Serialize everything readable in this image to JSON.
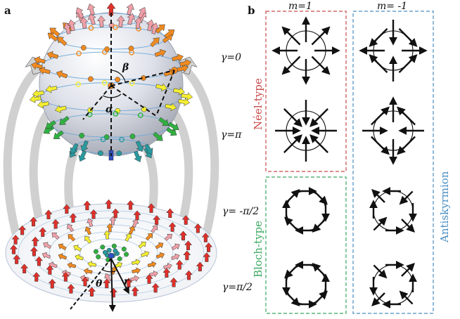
{
  "panel_a": {
    "letter": "a",
    "symbols": {
      "beta": "β",
      "alpha": "α",
      "theta": "θ",
      "r": "r"
    }
  },
  "panel_b": {
    "letter": "b",
    "columns": [
      {
        "label": "m=1"
      },
      {
        "label": "m= -1"
      }
    ],
    "rows": [
      {
        "gamma": "γ=0"
      },
      {
        "gamma": "γ=π"
      },
      {
        "gamma": "γ= -π/2"
      },
      {
        "gamma": "γ=π/2"
      }
    ],
    "group_labels": {
      "neel": "Néel-type",
      "bloch": "Bloch-type",
      "antiskyrmion": "Antiskyrmion"
    }
  },
  "colors": {
    "neel": "#c94a4a",
    "bloch": "#3aa860",
    "antiskyrmion": "#4a8ec2",
    "arrow_red": "#e0302a",
    "arrow_pink": "#f0a0a8",
    "arrow_orange": "#f08a20",
    "arrow_yellow": "#f4ee30",
    "arrow_green": "#30b040",
    "arrow_teal": "#2a9aa0",
    "arrow_blue": "#3050c0",
    "sphere": "#dde0ea",
    "grey_arrow": "#d0d0d0"
  }
}
